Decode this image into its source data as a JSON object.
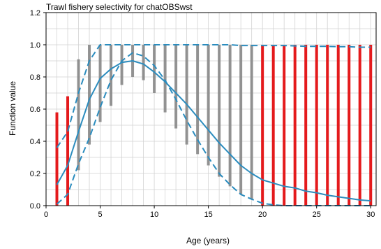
{
  "chart_data": {
    "type": "line",
    "title": "Trawl fishery selectivity for chatOBSwst",
    "xlabel": "Age (years)",
    "ylabel": "Function value",
    "xlim": [
      0,
      30.5
    ],
    "ylim": [
      0,
      1.2
    ],
    "x_ticks": [
      0,
      5,
      10,
      15,
      20,
      25,
      30
    ],
    "y_ticks": [
      0.0,
      0.2,
      0.4,
      0.6,
      0.8,
      1.0,
      1.2
    ],
    "x_tick_labels": [
      "0",
      "5",
      "10",
      "15",
      "20",
      "25",
      "30"
    ],
    "y_tick_labels": [
      "0.0",
      "0.2",
      "0.4",
      "0.6",
      "0.8",
      "1.0",
      "1.2"
    ],
    "grid": true,
    "colors": {
      "line": "#2b8cbe",
      "posterior_estimated": "#888888",
      "posterior_fixed": "#e41a1c",
      "grid": "#d3d3d3"
    },
    "series": [
      {
        "style": "solid",
        "x": [
          1,
          2,
          3,
          4,
          5,
          6,
          7,
          8,
          9,
          10,
          11,
          12,
          13,
          14,
          15,
          16,
          17,
          18,
          19,
          20,
          21,
          22,
          23,
          24,
          25,
          26,
          27,
          28,
          29,
          30
        ],
        "y": [
          0.13,
          0.25,
          0.46,
          0.66,
          0.79,
          0.85,
          0.89,
          0.9,
          0.88,
          0.83,
          0.77,
          0.7,
          0.63,
          0.55,
          0.47,
          0.39,
          0.32,
          0.25,
          0.2,
          0.16,
          0.14,
          0.12,
          0.11,
          0.09,
          0.08,
          0.065,
          0.055,
          0.045,
          0.035,
          0.03
        ]
      },
      {
        "style": "dashed",
        "x": [
          1,
          2,
          3,
          4,
          5,
          6,
          7,
          8,
          9,
          10,
          11,
          12,
          13,
          14,
          15,
          16,
          17,
          18,
          19,
          20,
          21,
          22,
          23,
          24,
          25,
          26,
          27,
          28,
          29,
          30
        ],
        "y": [
          0.36,
          0.46,
          0.7,
          0.9,
          1.0,
          1.0,
          1.0,
          1.0,
          1.0,
          1.0,
          1.0,
          1.0,
          1.0,
          1.0,
          1.0,
          1.0,
          1.0,
          0.995,
          0.995,
          0.995,
          0.995,
          0.995,
          0.993,
          0.99,
          0.99,
          0.99,
          0.988,
          0.988,
          0.985,
          0.985
        ]
      },
      {
        "style": "dashed",
        "x": [
          1,
          2,
          3,
          4,
          5,
          6,
          7,
          8,
          9,
          10,
          11,
          12,
          13,
          14,
          15,
          16,
          17,
          18,
          19,
          20,
          21,
          22,
          23,
          24,
          25,
          26,
          27,
          28,
          29,
          30
        ],
        "y": [
          0.01,
          0.07,
          0.26,
          0.42,
          0.61,
          0.78,
          0.9,
          0.95,
          0.93,
          0.87,
          0.78,
          0.66,
          0.53,
          0.41,
          0.3,
          0.2,
          0.13,
          0.07,
          0.04,
          0.015,
          0.005,
          0,
          0,
          0,
          0,
          0,
          0,
          0,
          0,
          0
        ]
      }
    ],
    "posterior_bars": [
      {
        "age": 1,
        "min": 0.0,
        "max": 0.58,
        "kind": "fixed"
      },
      {
        "age": 2,
        "min": 0.0,
        "max": 0.68,
        "kind": "fixed"
      },
      {
        "age": 3,
        "min": 0.22,
        "max": 0.91,
        "kind": "estimated"
      },
      {
        "age": 4,
        "min": 0.38,
        "max": 1.0,
        "kind": "estimated"
      },
      {
        "age": 5,
        "min": 0.52,
        "max": 1.0,
        "kind": "estimated"
      },
      {
        "age": 6,
        "min": 0.62,
        "max": 1.0,
        "kind": "estimated"
      },
      {
        "age": 7,
        "min": 0.75,
        "max": 1.0,
        "kind": "estimated"
      },
      {
        "age": 8,
        "min": 0.8,
        "max": 1.0,
        "kind": "estimated"
      },
      {
        "age": 9,
        "min": 0.78,
        "max": 1.0,
        "kind": "estimated"
      },
      {
        "age": 10,
        "min": 0.7,
        "max": 1.0,
        "kind": "estimated"
      },
      {
        "age": 11,
        "min": 0.58,
        "max": 1.0,
        "kind": "estimated"
      },
      {
        "age": 12,
        "min": 0.48,
        "max": 1.0,
        "kind": "estimated"
      },
      {
        "age": 13,
        "min": 0.38,
        "max": 1.0,
        "kind": "estimated"
      },
      {
        "age": 14,
        "min": 0.32,
        "max": 1.0,
        "kind": "estimated"
      },
      {
        "age": 15,
        "min": 0.25,
        "max": 1.0,
        "kind": "estimated"
      },
      {
        "age": 16,
        "min": 0.18,
        "max": 1.0,
        "kind": "estimated"
      },
      {
        "age": 17,
        "min": 0.12,
        "max": 1.0,
        "kind": "estimated"
      },
      {
        "age": 18,
        "min": 0.07,
        "max": 1.0,
        "kind": "estimated"
      },
      {
        "age": 19,
        "min": 0.04,
        "max": 1.0,
        "kind": "estimated"
      },
      {
        "age": 20,
        "min": 0.0,
        "max": 1.0,
        "kind": "fixed"
      },
      {
        "age": 21,
        "min": 0.0,
        "max": 1.0,
        "kind": "fixed"
      },
      {
        "age": 22,
        "min": 0.0,
        "max": 1.0,
        "kind": "fixed"
      },
      {
        "age": 23,
        "min": 0.0,
        "max": 1.0,
        "kind": "fixed"
      },
      {
        "age": 24,
        "min": 0.0,
        "max": 1.0,
        "kind": "fixed"
      },
      {
        "age": 25,
        "min": 0.0,
        "max": 1.0,
        "kind": "fixed"
      },
      {
        "age": 26,
        "min": 0.0,
        "max": 1.0,
        "kind": "fixed"
      },
      {
        "age": 27,
        "min": 0.0,
        "max": 1.0,
        "kind": "fixed"
      },
      {
        "age": 28,
        "min": 0.0,
        "max": 1.0,
        "kind": "fixed"
      },
      {
        "age": 29,
        "min": 0.0,
        "max": 1.0,
        "kind": "fixed"
      },
      {
        "age": 30,
        "min": 0.0,
        "max": 1.0,
        "kind": "fixed"
      }
    ]
  }
}
